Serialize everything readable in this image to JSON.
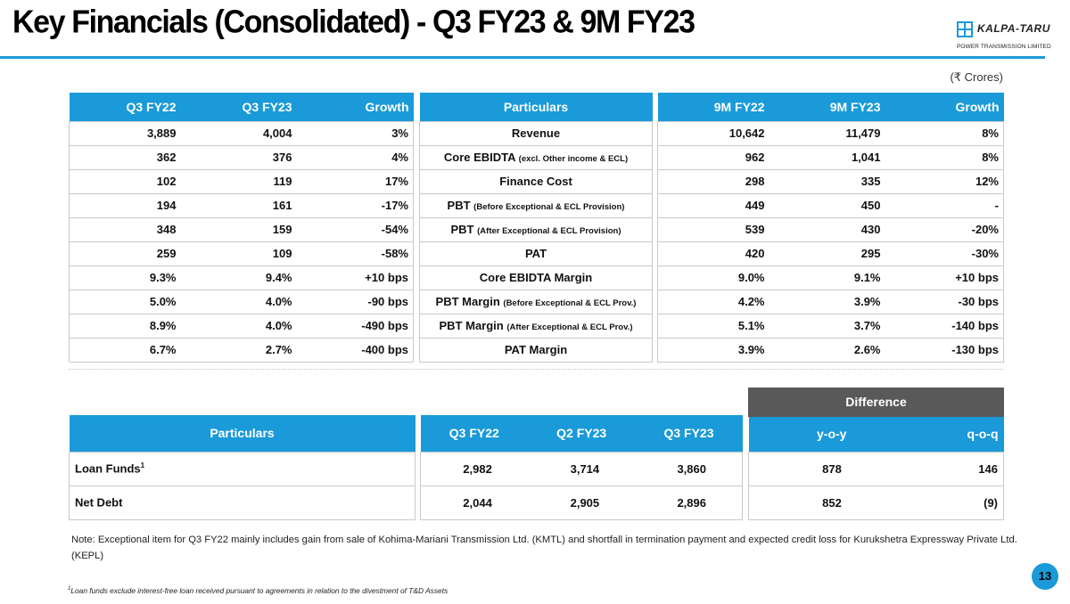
{
  "slide": {
    "title": "Key Financials (Consolidated) - Q3 FY23 & 9M FY23",
    "currency_note": "(₹ Crores)",
    "page_number": "13",
    "logo": {
      "name": "KALPA-TARU",
      "subtitle": "POWER TRANSMISSION LIMITED"
    }
  },
  "quarter_table": {
    "headers": [
      "Q3 FY22",
      "Q3 FY23",
      "Growth"
    ],
    "rows": [
      [
        "3,889",
        "4,004",
        "3%"
      ],
      [
        "362",
        "376",
        "4%"
      ],
      [
        "102",
        "119",
        "17%"
      ],
      [
        "194",
        "161",
        "-17%"
      ],
      [
        "348",
        "159",
        "-54%"
      ],
      [
        "259",
        "109",
        "-58%"
      ],
      [
        "9.3%",
        "9.4%",
        "+10 bps"
      ],
      [
        "5.0%",
        "4.0%",
        "-90 bps"
      ],
      [
        "8.9%",
        "4.0%",
        "-490 bps"
      ],
      [
        "6.7%",
        "2.7%",
        "-400 bps"
      ]
    ]
  },
  "particulars": {
    "header": "Particulars",
    "rows": [
      {
        "label": "Revenue",
        "sub": ""
      },
      {
        "label": "Core EBIDTA",
        "sub": "(excl. Other income & ECL)"
      },
      {
        "label": "Finance Cost",
        "sub": ""
      },
      {
        "label": "PBT",
        "sub": "(Before Exceptional & ECL Provision)"
      },
      {
        "label": "PBT",
        "sub": "(After Exceptional & ECL Provision)"
      },
      {
        "label": "PAT",
        "sub": ""
      },
      {
        "label": "Core EBIDTA Margin",
        "sub": ""
      },
      {
        "label": "PBT Margin",
        "sub": "(Before Exceptional & ECL Prov.)"
      },
      {
        "label": "PBT Margin",
        "sub": "(After Exceptional & ECL Prov.)"
      },
      {
        "label": "PAT Margin",
        "sub": ""
      }
    ]
  },
  "nine_month_table": {
    "headers": [
      "9M FY22",
      "9M FY23",
      "Growth"
    ],
    "rows": [
      [
        "10,642",
        "11,479",
        "8%"
      ],
      [
        "962",
        "1,041",
        "8%"
      ],
      [
        "298",
        "335",
        "12%"
      ],
      [
        "449",
        "450",
        "-"
      ],
      [
        "539",
        "430",
        "-20%"
      ],
      [
        "420",
        "295",
        "-30%"
      ],
      [
        "9.0%",
        "9.1%",
        "+10 bps"
      ],
      [
        "4.2%",
        "3.9%",
        "-30 bps"
      ],
      [
        "5.1%",
        "3.7%",
        "-140 bps"
      ],
      [
        "3.9%",
        "2.6%",
        "-130 bps"
      ]
    ]
  },
  "loan_table": {
    "particulars_header": "Particulars",
    "headers": [
      "Q3 FY22",
      "Q2 FY23",
      "Q3 FY23"
    ],
    "rows": [
      {
        "label": "Loan Funds",
        "sup": "1",
        "values": [
          "2,982",
          "3,714",
          "3,860"
        ]
      },
      {
        "label": "Net Debt",
        "sup": "",
        "values": [
          "2,044",
          "2,905",
          "2,896"
        ]
      }
    ]
  },
  "difference": {
    "title": "Difference",
    "headers": [
      "y-o-y",
      "q-o-q"
    ],
    "rows": [
      [
        "878",
        "146"
      ],
      [
        "852",
        "(9)"
      ]
    ]
  },
  "note": "Note: Exceptional item for Q3 FY22 mainly includes gain from sale of Kohima-Mariani Transmission Ltd. (KMTL) and shortfall in termination payment and expected credit loss for Kurukshetra Expressway Private Ltd. (KEPL)",
  "footnote": {
    "sup": "1",
    "text": "Loan funds exclude interest-free loan received pursuant to agreements in relation to the divestment of T&D Assets"
  },
  "colors": {
    "accent": "#1a9ad8",
    "difference_header": "#595959"
  }
}
